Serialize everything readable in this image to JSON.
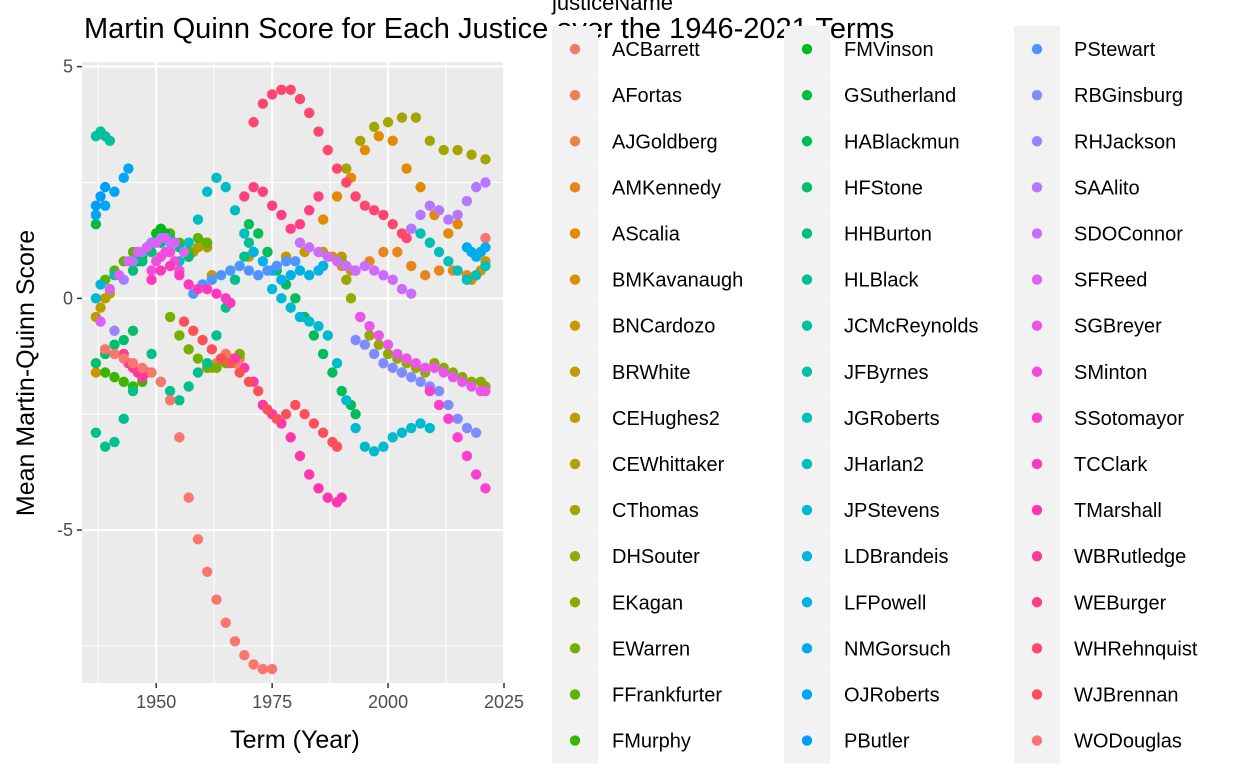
{
  "chart_data": {
    "type": "scatter",
    "title": "Martin Quinn Score for Each Justice over the 1946-2021 Terms",
    "xlabel": "Term (Year)",
    "ylabel": "Mean Martin-Quinn Score",
    "xlim": [
      1934,
      2025
    ],
    "ylim": [
      -8.3,
      5.1
    ],
    "x_ticks": [
      1950,
      1975,
      2000,
      2025
    ],
    "y_ticks": [
      5,
      0,
      -5
    ],
    "x_tick_labels": [
      "1950",
      "1975",
      "2000",
      "2025"
    ],
    "y_tick_labels": [
      "5",
      "0",
      "-5"
    ],
    "grid": true,
    "legend": {
      "title": "justiceName",
      "position": "right",
      "columns": 3
    },
    "series": [
      {
        "name": "ACBarrett",
        "color": "#F8766D",
        "x": [
          2020,
          2021
        ],
        "y": [
          1.0,
          1.3
        ]
      },
      {
        "name": "AFortas",
        "color": "#F37B59",
        "x": [
          1965,
          1966,
          1967,
          1968
        ],
        "y": [
          -1.2,
          -1.3,
          -1.4,
          -1.3
        ]
      },
      {
        "name": "AJGoldberg",
        "color": "#ED8141",
        "x": [
          1962,
          1963,
          1964
        ],
        "y": [
          -1.5,
          -1.4,
          -1.3
        ]
      },
      {
        "name": "AMKennedy",
        "color": "#E7861B",
        "x": [
          1988,
          1990,
          1993,
          1996,
          1999,
          2002,
          2005,
          2008,
          2011,
          2014,
          2017
        ],
        "y": [
          0.9,
          0.7,
          0.6,
          0.8,
          1.0,
          1.0,
          0.7,
          0.5,
          0.6,
          0.6,
          0.5
        ]
      },
      {
        "name": "AScalia",
        "color": "#E08B00",
        "x": [
          1986,
          1989,
          1992,
          1995,
          1998,
          2001,
          2004,
          2007,
          2010,
          2013,
          2015
        ],
        "y": [
          1.7,
          2.2,
          2.6,
          3.2,
          3.5,
          3.4,
          2.8,
          2.4,
          1.8,
          1.4,
          1.6
        ]
      },
      {
        "name": "BMKavanaugh",
        "color": "#D89000",
        "x": [
          2018,
          2019,
          2020,
          2021
        ],
        "y": [
          0.4,
          0.5,
          0.6,
          0.8
        ]
      },
      {
        "name": "BNCardozo",
        "color": "#CF9400",
        "x": [
          1937
        ],
        "y": [
          -1.6
        ]
      },
      {
        "name": "BRWhite",
        "color": "#C59900",
        "x": [
          1962,
          1966,
          1970,
          1974,
          1978,
          1982,
          1986,
          1990,
          1992
        ],
        "y": [
          0.5,
          0.6,
          0.9,
          1.0,
          0.9,
          1.0,
          1.0,
          0.9,
          0.6
        ]
      },
      {
        "name": "CEHughes2",
        "color": "#BB9D00",
        "x": [
          1937,
          1938,
          1939,
          1940
        ],
        "y": [
          -0.4,
          -0.2,
          0.0,
          0.1
        ]
      },
      {
        "name": "CEWhittaker",
        "color": "#AFA100",
        "x": [
          1957,
          1958,
          1959,
          1960,
          1961
        ],
        "y": [
          0.9,
          1.0,
          1.1,
          1.2,
          1.1
        ]
      },
      {
        "name": "CThomas",
        "color": "#A3A500",
        "x": [
          1991,
          1994,
          1997,
          2000,
          2003,
          2006,
          2009,
          2012,
          2015,
          2018,
          2021
        ],
        "y": [
          2.8,
          3.4,
          3.7,
          3.8,
          3.9,
          3.9,
          3.4,
          3.2,
          3.2,
          3.1,
          3.0
        ]
      },
      {
        "name": "DHSouter",
        "color": "#95A900",
        "x": [
          1990,
          1991,
          1992,
          1994,
          1996,
          1998,
          2000,
          2002,
          2004,
          2006,
          2008
        ],
        "y": [
          0.8,
          0.4,
          0.0,
          -0.4,
          -0.8,
          -1.0,
          -1.2,
          -1.3,
          -1.4,
          -1.5,
          -1.6
        ]
      },
      {
        "name": "EKagan",
        "color": "#86AC00",
        "x": [
          2010,
          2012,
          2014,
          2016,
          2018,
          2020,
          2021
        ],
        "y": [
          -1.4,
          -1.5,
          -1.6,
          -1.7,
          -1.8,
          -1.8,
          -1.9
        ]
      },
      {
        "name": "EWarren",
        "color": "#75AF00",
        "x": [
          1953,
          1955,
          1957,
          1959,
          1961,
          1963,
          1965,
          1967,
          1968
        ],
        "y": [
          -0.4,
          -0.8,
          -1.1,
          -1.3,
          -1.5,
          -1.5,
          -1.4,
          -1.3,
          -1.2
        ]
      },
      {
        "name": "FFrankfurter",
        "color": "#5EB300",
        "x": [
          1939,
          1941,
          1943,
          1945,
          1947,
          1949,
          1951,
          1953,
          1955,
          1957,
          1959,
          1961
        ],
        "y": [
          0.4,
          0.6,
          0.8,
          1.0,
          0.8,
          1.2,
          1.5,
          1.4,
          1.2,
          1.0,
          1.3,
          1.2
        ]
      },
      {
        "name": "FMurphy",
        "color": "#39B600",
        "x": [
          1939,
          1941,
          1943,
          1945,
          1947,
          1948
        ],
        "y": [
          -1.6,
          -1.7,
          -1.8,
          -1.9,
          -1.8,
          -1.6
        ]
      },
      {
        "name": "FMVinson",
        "color": "#00B81F",
        "x": [
          1946,
          1947,
          1948,
          1949,
          1950,
          1951,
          1952
        ],
        "y": [
          0.8,
          0.9,
          1.1,
          1.2,
          1.4,
          1.5,
          1.4
        ]
      },
      {
        "name": "GSutherland",
        "color": "#00BA42",
        "x": [
          1937
        ],
        "y": [
          1.6
        ]
      },
      {
        "name": "HABlackmun",
        "color": "#00BC59",
        "x": [
          1970,
          1972,
          1974,
          1976,
          1978,
          1980,
          1982,
          1984,
          1986,
          1988,
          1990,
          1992,
          1993
        ],
        "y": [
          1.6,
          1.4,
          1.0,
          0.6,
          0.3,
          0.0,
          -0.4,
          -0.8,
          -1.2,
          -1.6,
          -2.0,
          -2.3,
          -2.5
        ]
      },
      {
        "name": "HFStone",
        "color": "#00BE6C",
        "x": [
          1937,
          1939,
          1941,
          1943,
          1945
        ],
        "y": [
          -1.4,
          -1.2,
          -1.0,
          -0.9,
          -0.7
        ]
      },
      {
        "name": "HHBurton",
        "color": "#00BF7D",
        "x": [
          1945,
          1947,
          1949,
          1951,
          1953,
          1955,
          1957
        ],
        "y": [
          0.6,
          0.8,
          1.0,
          1.2,
          1.3,
          1.1,
          0.9
        ]
      },
      {
        "name": "HLBlack",
        "color": "#00C08D",
        "x": [
          1937,
          1939,
          1941,
          1943,
          1945,
          1947,
          1949,
          1951,
          1953,
          1955,
          1957,
          1959,
          1961,
          1963,
          1965,
          1967,
          1969,
          1970
        ],
        "y": [
          -2.9,
          -3.2,
          -3.1,
          -2.6,
          -2.0,
          -1.6,
          -1.2,
          -1.8,
          -2.0,
          -2.2,
          -1.9,
          -1.6,
          -1.4,
          -0.8,
          -0.2,
          0.4,
          0.9,
          1.2
        ]
      },
      {
        "name": "JCMcReynolds",
        "color": "#00C19C",
        "x": [
          1937,
          1938,
          1939,
          1940
        ],
        "y": [
          3.5,
          3.6,
          3.5,
          3.4
        ]
      },
      {
        "name": "JFByrnes",
        "color": "#00C1AA",
        "x": [
          1941
        ],
        "y": [
          0.5
        ]
      },
      {
        "name": "JGRoberts",
        "color": "#00C0B8",
        "x": [
          2005,
          2007,
          2009,
          2011,
          2013,
          2015,
          2017,
          2019,
          2021
        ],
        "y": [
          1.5,
          1.4,
          1.2,
          1.0,
          0.8,
          0.6,
          0.4,
          0.5,
          0.7
        ]
      },
      {
        "name": "JHarlan2",
        "color": "#00BDC4",
        "x": [
          1955,
          1957,
          1959,
          1961,
          1963,
          1965,
          1967,
          1969,
          1971
        ],
        "y": [
          0.8,
          1.2,
          1.7,
          2.3,
          2.6,
          2.4,
          1.9,
          1.4,
          1.0
        ]
      },
      {
        "name": "JPStevens",
        "color": "#00BAD0",
        "x": [
          1975,
          1977,
          1979,
          1981,
          1983,
          1985,
          1987,
          1989,
          1991,
          1993,
          1995,
          1997,
          1999,
          2001,
          2003,
          2005,
          2007,
          2009
        ],
        "y": [
          0.2,
          0.0,
          -0.2,
          -0.4,
          -0.5,
          -0.6,
          -0.8,
          -1.4,
          -2.2,
          -2.8,
          -3.2,
          -3.3,
          -3.2,
          -3.0,
          -2.9,
          -2.8,
          -2.7,
          -2.8
        ]
      },
      {
        "name": "LDBrandeis",
        "color": "#00B6DB",
        "x": [
          1937,
          1938
        ],
        "y": [
          0.0,
          0.3
        ]
      },
      {
        "name": "LFPowell",
        "color": "#00B1E5",
        "x": [
          1971,
          1973,
          1975,
          1977,
          1979,
          1981,
          1983,
          1985,
          1986
        ],
        "y": [
          1.0,
          0.8,
          0.6,
          0.4,
          0.5,
          0.6,
          0.5,
          0.6,
          0.7
        ]
      },
      {
        "name": "NMGorsuch",
        "color": "#00ABEE",
        "x": [
          2017,
          2018,
          2019,
          2020,
          2021
        ],
        "y": [
          1.1,
          1.0,
          0.9,
          1.0,
          1.1
        ]
      },
      {
        "name": "OJRoberts",
        "color": "#00A5F6",
        "x": [
          1937,
          1939,
          1941,
          1943,
          1944
        ],
        "y": [
          1.8,
          2.0,
          2.3,
          2.6,
          2.8
        ]
      },
      {
        "name": "PButler",
        "color": "#009DFC",
        "x": [
          1937,
          1938,
          1939
        ],
        "y": [
          2.0,
          2.2,
          2.4
        ]
      },
      {
        "name": "PStewart",
        "color": "#4D95FF",
        "x": [
          1958,
          1960,
          1962,
          1964,
          1966,
          1968,
          1970,
          1972,
          1974,
          1976,
          1978,
          1980
        ],
        "y": [
          0.1,
          0.3,
          0.4,
          0.5,
          0.6,
          0.7,
          0.6,
          0.5,
          0.6,
          0.7,
          0.8,
          0.8
        ]
      },
      {
        "name": "RBGinsburg",
        "color": "#7F8CFF",
        "x": [
          1993,
          1995,
          1997,
          1999,
          2001,
          2003,
          2005,
          2007,
          2009,
          2011,
          2013,
          2015,
          2017,
          2019
        ],
        "y": [
          -0.9,
          -1.0,
          -1.2,
          -1.4,
          -1.5,
          -1.6,
          -1.7,
          -1.8,
          -1.9,
          -2.0,
          -2.3,
          -2.6,
          -2.8,
          -2.9
        ]
      },
      {
        "name": "RHJackson",
        "color": "#9D82FF",
        "x": [
          1941,
          1943,
          1945,
          1947,
          1949,
          1951,
          1953
        ],
        "y": [
          -0.7,
          0.4,
          0.8,
          1.0,
          1.2,
          1.3,
          1.2
        ]
      },
      {
        "name": "SAAlito",
        "color": "#B677FF",
        "x": [
          2005,
          2007,
          2009,
          2011,
          2013,
          2015,
          2017,
          2019,
          2021
        ],
        "y": [
          1.5,
          1.8,
          2.0,
          1.9,
          1.7,
          1.8,
          2.1,
          2.4,
          2.5
        ]
      },
      {
        "name": "SDOConnor",
        "color": "#CB6CFF",
        "x": [
          1981,
          1983,
          1985,
          1987,
          1989,
          1991,
          1993,
          1995,
          1997,
          1999,
          2001,
          2003,
          2005
        ],
        "y": [
          1.2,
          1.1,
          1.0,
          0.9,
          0.8,
          0.7,
          0.6,
          0.7,
          0.6,
          0.5,
          0.4,
          0.2,
          0.1
        ]
      },
      {
        "name": "SFReed",
        "color": "#DC61F7",
        "x": [
          1938,
          1940,
          1942,
          1944,
          1946,
          1948,
          1950,
          1952,
          1954,
          1956
        ],
        "y": [
          -0.5,
          0.2,
          0.5,
          0.8,
          1.0,
          1.1,
          1.2,
          1.3,
          1.2,
          1.0
        ]
      },
      {
        "name": "SGBreyer",
        "color": "#EA56EC",
        "x": [
          1994,
          1996,
          1998,
          2000,
          2002,
          2004,
          2006,
          2008,
          2010,
          2012,
          2014,
          2016,
          2018,
          2020,
          2021
        ],
        "y": [
          -0.4,
          -0.6,
          -0.8,
          -1.0,
          -1.2,
          -1.3,
          -1.4,
          -1.5,
          -1.5,
          -1.6,
          -1.7,
          -1.8,
          -1.9,
          -2.0,
          -2.0
        ]
      },
      {
        "name": "SMinton",
        "color": "#F44BDF",
        "x": [
          1949,
          1950,
          1951,
          1952,
          1953,
          1954,
          1955
        ],
        "y": [
          0.6,
          0.8,
          0.9,
          1.0,
          1.0,
          0.8,
          0.6
        ]
      },
      {
        "name": "SSotomayor",
        "color": "#FB40D0",
        "x": [
          2009,
          2011,
          2013,
          2015,
          2017,
          2019,
          2021
        ],
        "y": [
          -2.0,
          -2.3,
          -2.6,
          -3.0,
          -3.4,
          -3.8,
          -4.1
        ]
      },
      {
        "name": "TCClark",
        "color": "#FF39BF",
        "x": [
          1949,
          1951,
          1953,
          1955,
          1957,
          1959,
          1961,
          1963,
          1965,
          1966
        ],
        "y": [
          0.4,
          0.6,
          0.7,
          0.5,
          0.3,
          0.2,
          0.2,
          0.1,
          0.0,
          -0.1
        ]
      },
      {
        "name": "TMarshall",
        "color": "#FF36AD",
        "x": [
          1967,
          1969,
          1971,
          1973,
          1975,
          1977,
          1979,
          1981,
          1983,
          1985,
          1987,
          1989,
          1990
        ],
        "y": [
          -1.3,
          -1.5,
          -1.8,
          -2.3,
          -2.5,
          -2.7,
          -3.0,
          -3.4,
          -3.8,
          -4.1,
          -4.3,
          -4.4,
          -4.3
        ]
      },
      {
        "name": "WBRutledge",
        "color": "#FF399A",
        "x": [
          1943,
          1944,
          1945,
          1946,
          1947,
          1948
        ],
        "y": [
          -1.2,
          -1.4,
          -1.5,
          -1.6,
          -1.7,
          -1.6
        ]
      },
      {
        "name": "WEBurger",
        "color": "#FF3F85",
        "x": [
          1969,
          1971,
          1973,
          1975,
          1977,
          1979,
          1981,
          1983,
          1985
        ],
        "y": [
          2.2,
          2.4,
          2.3,
          2.0,
          1.8,
          1.5,
          1.6,
          1.9,
          2.2
        ]
      },
      {
        "name": "WHRehnquist",
        "color": "#FF4670",
        "x": [
          1971,
          1973,
          1975,
          1977,
          1979,
          1981,
          1983,
          1985,
          1987,
          1989,
          1991,
          1993,
          1995,
          1997,
          1999,
          2001,
          2003,
          2004
        ],
        "y": [
          3.8,
          4.2,
          4.4,
          4.5,
          4.5,
          4.3,
          4.0,
          3.6,
          3.2,
          2.8,
          2.5,
          2.2,
          2.0,
          1.9,
          1.8,
          1.6,
          1.4,
          1.3
        ]
      },
      {
        "name": "WJBrennan",
        "color": "#FF4F59",
        "x": [
          1956,
          1958,
          1960,
          1962,
          1964,
          1966,
          1968,
          1970,
          1972,
          1974,
          1976,
          1978,
          1980,
          1982,
          1984,
          1986,
          1988,
          1989
        ],
        "y": [
          -0.5,
          -0.7,
          -0.9,
          -1.1,
          -1.3,
          -1.4,
          -1.6,
          -1.8,
          -2.0,
          -2.4,
          -2.6,
          -2.5,
          -2.3,
          -2.5,
          -2.7,
          -2.9,
          -3.1,
          -3.2
        ]
      },
      {
        "name": "WODouglas",
        "color": "#F8766D",
        "x": [
          1939,
          1941,
          1943,
          1945,
          1947,
          1949,
          1951,
          1953,
          1955,
          1957,
          1959,
          1961,
          1963,
          1965,
          1967,
          1969,
          1971,
          1973,
          1975
        ],
        "y": [
          -1.1,
          -1.2,
          -1.3,
          -1.4,
          -1.5,
          -1.6,
          -1.8,
          -2.2,
          -3.0,
          -4.3,
          -5.2,
          -5.9,
          -6.5,
          -7.0,
          -7.4,
          -7.7,
          -7.9,
          -8.0,
          -8.0
        ]
      }
    ]
  }
}
